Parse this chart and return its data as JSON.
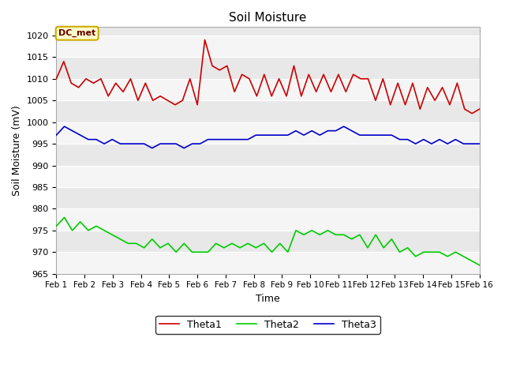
{
  "title": "Soil Moisture",
  "xlabel": "Time",
  "ylabel": "Soil Moisture (mV)",
  "ylim": [
    965,
    1022
  ],
  "yticks": [
    965,
    970,
    975,
    980,
    985,
    990,
    995,
    1000,
    1005,
    1010,
    1015,
    1020
  ],
  "xtick_labels": [
    "Feb 1",
    "Feb 2",
    "Feb 3",
    "Feb 4",
    "Feb 5",
    "Feb 6",
    "Feb 7",
    "Feb 8",
    "Feb 9",
    "Feb 10",
    "Feb 11",
    "Feb 12",
    "Feb 13",
    "Feb 14",
    "Feb 15",
    "Feb 16"
  ],
  "annotation_text": "DC_met",
  "annotation_bg": "#ffffcc",
  "annotation_border": "#ccaa00",
  "fig_bg": "#ffffff",
  "plot_bg": "#e8e8e8",
  "band_color": "#f5f5f5",
  "grid_color": "#ffffff",
  "theta1_color": "#cc0000",
  "theta2_color": "#00cc00",
  "theta3_color": "#0000cc",
  "theta1": [
    1010,
    1014,
    1009,
    1008,
    1010,
    1009,
    1010,
    1006,
    1009,
    1007,
    1010,
    1005,
    1009,
    1005,
    1006,
    1005,
    1004,
    1005,
    1010,
    1004,
    1019,
    1013,
    1012,
    1013,
    1007,
    1011,
    1010,
    1006,
    1011,
    1006,
    1010,
    1006,
    1013,
    1006,
    1011,
    1007,
    1011,
    1007,
    1011,
    1007,
    1011,
    1010,
    1010,
    1005,
    1010,
    1004,
    1009,
    1004,
    1009,
    1003,
    1008,
    1005,
    1008,
    1004,
    1009,
    1003,
    1002,
    1003
  ],
  "theta2": [
    976,
    978,
    975,
    977,
    975,
    976,
    975,
    974,
    973,
    972,
    972,
    971,
    973,
    971,
    972,
    970,
    972,
    970,
    970,
    970,
    972,
    971,
    972,
    971,
    972,
    971,
    972,
    970,
    972,
    970,
    975,
    974,
    975,
    974,
    975,
    974,
    974,
    973,
    974,
    971,
    974,
    971,
    973,
    970,
    971,
    969,
    970,
    970,
    970,
    969,
    970,
    969,
    968,
    967
  ],
  "theta3": [
    997,
    999,
    998,
    997,
    996,
    996,
    995,
    996,
    995,
    995,
    995,
    995,
    994,
    995,
    995,
    995,
    994,
    995,
    995,
    996,
    996,
    996,
    996,
    996,
    996,
    997,
    997,
    997,
    997,
    997,
    998,
    997,
    998,
    997,
    998,
    998,
    999,
    998,
    997,
    997,
    997,
    997,
    997,
    996,
    996,
    995,
    996,
    995,
    996,
    995,
    996,
    995,
    995,
    995
  ]
}
